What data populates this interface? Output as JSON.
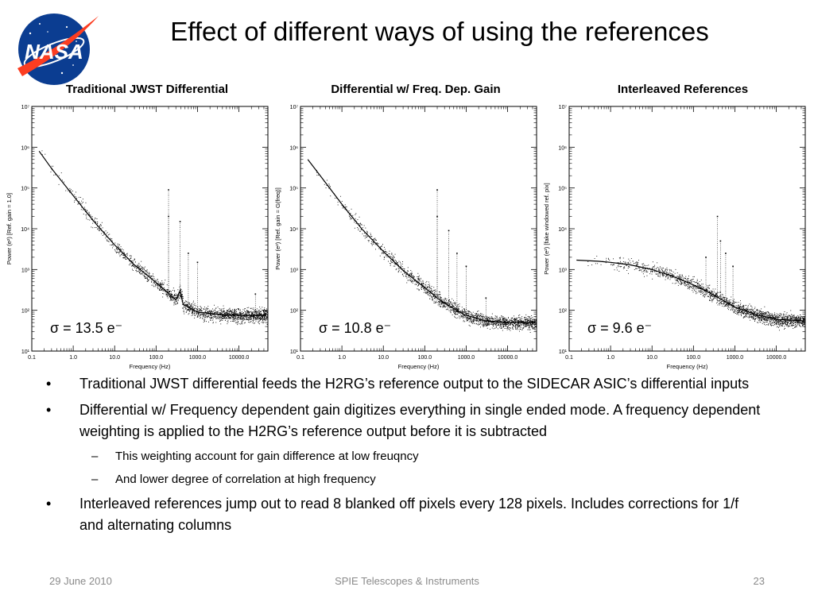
{
  "slide": {
    "title": "Effect of different ways of using the references",
    "logo_text": "NASA",
    "colors": {
      "logo_blue": "#0b3d91",
      "logo_red": "#fc3d21",
      "footer_gray": "#8a8a8a"
    }
  },
  "chart_data": [
    {
      "type": "scatter",
      "title": "Traditional JWST Differential",
      "xlabel": "Frequency (Hz)",
      "ylabel": "Power (e²) [Ref. gain = 1.0]",
      "x_scale": "log",
      "y_scale": "log",
      "xlim": [
        0.1,
        50000
      ],
      "ylim": [
        10,
        10000000
      ],
      "x_ticks": [
        "0.1",
        "1.0",
        "10.0",
        "100.0",
        "1000.0",
        "10000.0"
      ],
      "y_ticks": [
        "10¹",
        "10²",
        "10³",
        "10⁴",
        "10⁵",
        "10⁶",
        "10⁷"
      ],
      "annotation": "σ = 13.5 e⁻",
      "trend": [
        [
          0.15,
          800000
        ],
        [
          0.3,
          300000
        ],
        [
          1,
          65000
        ],
        [
          3,
          16000
        ],
        [
          10,
          4000
        ],
        [
          30,
          1300
        ],
        [
          100,
          480
        ],
        [
          200,
          260
        ],
        [
          300,
          180
        ],
        [
          380,
          300
        ],
        [
          450,
          140
        ],
        [
          1000,
          90
        ],
        [
          3000,
          80
        ],
        [
          10000,
          75
        ],
        [
          45000,
          75
        ]
      ],
      "peaks": [
        [
          200,
          90000
        ],
        [
          200,
          20000
        ],
        [
          380,
          15000
        ],
        [
          600,
          2500
        ],
        [
          1000,
          1500
        ],
        [
          25000,
          250
        ]
      ]
    },
    {
      "type": "scatter",
      "title": "Differential w/ Freq. Dep. Gain",
      "xlabel": "Frequency (Hz)",
      "ylabel": "Power (e²) [Ref. gain = G(freq)]",
      "x_scale": "log",
      "y_scale": "log",
      "xlim": [
        0.1,
        50000
      ],
      "ylim": [
        10,
        10000000
      ],
      "x_ticks": [
        "0.1",
        "1.0",
        "10.0",
        "100.0",
        "1000.0",
        "10000.0"
      ],
      "y_ticks": [
        "10¹",
        "10²",
        "10³",
        "10⁴",
        "10⁵",
        "10⁶",
        "10⁷"
      ],
      "annotation": "σ = 10.8 e⁻",
      "trend": [
        [
          0.15,
          500000
        ],
        [
          0.3,
          200000
        ],
        [
          1,
          40000
        ],
        [
          3,
          10000
        ],
        [
          10,
          2800
        ],
        [
          30,
          950
        ],
        [
          100,
          360
        ],
        [
          200,
          200
        ],
        [
          300,
          150
        ],
        [
          500,
          110
        ],
        [
          1000,
          75
        ],
        [
          3000,
          55
        ],
        [
          10000,
          50
        ],
        [
          45000,
          50
        ]
      ],
      "peaks": [
        [
          200,
          90000
        ],
        [
          200,
          20000
        ],
        [
          380,
          9000
        ],
        [
          600,
          2500
        ],
        [
          1000,
          1200
        ],
        [
          3000,
          200
        ]
      ]
    },
    {
      "type": "scatter",
      "title": "Interleaved References",
      "xlabel": "Frequency (Hz)",
      "ylabel": "Power (e²) [fake windowed ref. pix]",
      "x_scale": "log",
      "y_scale": "log",
      "xlim": [
        0.1,
        50000
      ],
      "ylim": [
        10,
        10000000
      ],
      "x_ticks": [
        "0.1",
        "1.0",
        "10.0",
        "100.0",
        "1000.0",
        "10000.0"
      ],
      "y_ticks": [
        "10¹",
        "10²",
        "10³",
        "10⁴",
        "10⁵",
        "10⁶",
        "10⁷"
      ],
      "annotation": "σ = 9.6 e⁻",
      "trend": [
        [
          0.15,
          1700
        ],
        [
          0.5,
          1600
        ],
        [
          1,
          1500
        ],
        [
          3,
          1300
        ],
        [
          10,
          1000
        ],
        [
          30,
          700
        ],
        [
          100,
          420
        ],
        [
          200,
          300
        ],
        [
          500,
          180
        ],
        [
          1000,
          120
        ],
        [
          3000,
          80
        ],
        [
          10000,
          60
        ],
        [
          45000,
          55
        ]
      ],
      "peaks": [
        [
          200,
          2000
        ],
        [
          380,
          20000
        ],
        [
          450,
          5000
        ],
        [
          600,
          2500
        ],
        [
          900,
          1200
        ]
      ]
    }
  ],
  "bullets": [
    {
      "level": 1,
      "mark": "•",
      "text": "Traditional JWST differential feeds the H2RG’s reference output to the SIDECAR ASIC’s differential inputs"
    },
    {
      "level": 1,
      "mark": "•",
      "text": "Differential w/ Frequency dependent gain digitizes everything in single ended mode. A frequency dependent weighting is applied to the H2RG’s reference output before it is subtracted"
    },
    {
      "level": 2,
      "mark": "–",
      "text": "This weighting account for gain difference at low freuqncy"
    },
    {
      "level": 2,
      "mark": "–",
      "text": "And lower degree of correlation at high frequency"
    },
    {
      "level": 1,
      "mark": "•",
      "text": "Interleaved references jump out to read 8 blanked off pixels every 128 pixels. Includes corrections for 1/f and alternating columns"
    }
  ],
  "footer": {
    "date": "29 June 2010",
    "center": "SPIE Telescopes & Instruments",
    "page": "23"
  }
}
